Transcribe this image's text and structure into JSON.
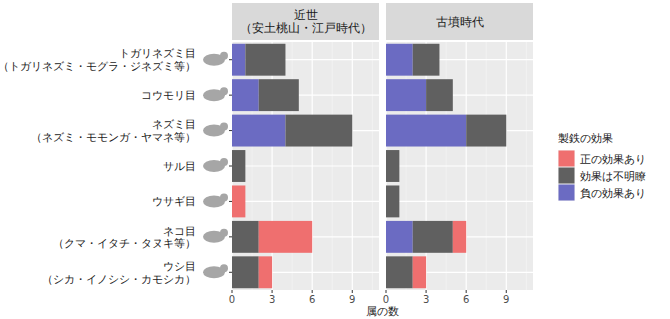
{
  "chart_data": [
    {
      "type": "bar",
      "orientation": "horizontal",
      "stacked": true,
      "grid": true,
      "title": "近世\n（安土桃山・江戸時代）",
      "categories": [
        "トガリネズミ目\n（トガリネズミ・モグラ・ジネズミ等）",
        "コウモリ目",
        "ネズミ目\n（ネズミ・モモンガ・ヤマネ等）",
        "サル目",
        "ウサギ目",
        "ネコ目\n（クマ・イタチ・タヌキ等）",
        "ウシ目\n（シカ・イノシシ・カモシカ）"
      ],
      "series": [
        {
          "name": "正の効果あり",
          "color": "#ef6f6f",
          "values": [
            0,
            0,
            0,
            0,
            1,
            4,
            1
          ]
        },
        {
          "name": "効果は不明瞭",
          "color": "#606060",
          "values": [
            3,
            3,
            5,
            1,
            0,
            2,
            2
          ]
        },
        {
          "name": "負の効果あり",
          "color": "#6b6bc2",
          "values": [
            1,
            2,
            4,
            0,
            0,
            0,
            0
          ]
        }
      ],
      "xlim": [
        0,
        11
      ],
      "xticks": [
        0,
        3,
        6,
        9
      ],
      "legend": "right"
    },
    {
      "type": "bar",
      "orientation": "horizontal",
      "stacked": true,
      "grid": true,
      "tick_labels": "x",
      "title": "古墳時代",
      "categories": [
        "トガリネズミ目\n（トガリネズミ・モグラ・ジネズミ等）",
        "コウモリ目",
        "ネズミ目\n（ネズミ・モモンガ・ヤマネ等）",
        "サル目",
        "ウサギ目",
        "ネコ目\n（クマ・イタチ・タヌキ等）",
        "ウシ目\n（シカ・イノシシ・カモシカ）"
      ],
      "series": [
        {
          "name": "正の効果あり",
          "color": "#ef6f6f",
          "values": [
            0,
            0,
            0,
            0,
            0,
            1,
            1
          ]
        },
        {
          "name": "効果は不明瞭",
          "color": "#606060",
          "values": [
            2,
            2,
            3,
            1,
            1,
            3,
            2
          ]
        },
        {
          "name": "負の効果あり",
          "color": "#6b6bc2",
          "values": [
            2,
            3,
            6,
            0,
            0,
            2,
            0
          ]
        }
      ],
      "xlim": [
        0,
        11
      ],
      "xticks": [
        0,
        3,
        6,
        9
      ]
    }
  ],
  "x_label": "属の数",
  "legend_title": "製鉄の効果"
}
